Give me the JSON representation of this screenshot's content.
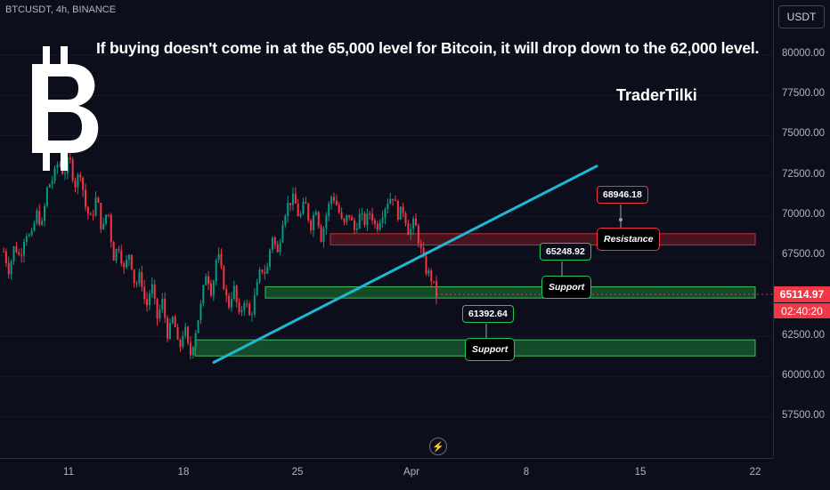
{
  "symbol_label": "BTCUSDT, 4h, BINANCE",
  "headline": "If buying doesn't come in at the 65,000 level for Bitcoin, it will drop down to the 62,000 level.",
  "author": "TraderTilki",
  "logo": "bitcoin-logo",
  "currency_button": "USDT",
  "current_price": "65114.97",
  "countdown": "02:40:20",
  "colors": {
    "up": "#089981",
    "down": "#f23645",
    "trendline": "#1fb8d4",
    "support_zone": "#1e8f3a",
    "resistance_zone": "#8a1f28"
  },
  "chart_data": {
    "type": "candlestick",
    "x_ticks": [
      "11",
      "18",
      "25",
      "Apr",
      "8",
      "15",
      "22"
    ],
    "y_ticks": [
      "80000.00",
      "77500.00",
      "75000.00",
      "72500.00",
      "70000.00",
      "67500.00",
      "62500.00",
      "60000.00",
      "57500.00"
    ],
    "ylim": [
      55000,
      83000
    ],
    "annotations": {
      "resistance": {
        "label": "Resistance",
        "price": "68946.18",
        "zone": [
          68200,
          68900
        ]
      },
      "support_upper": {
        "label": "Support",
        "price": "65248.92",
        "zone": [
          64900,
          65600
        ]
      },
      "support_lower": {
        "label": "Support",
        "price": "61392.64",
        "zone": [
          61300,
          62300
        ]
      }
    },
    "trendline": {
      "start": [
        "Mar 20",
        60900
      ],
      "end": [
        "Apr 10",
        73100
      ]
    },
    "price_path": [
      67800,
      66600,
      68200,
      67400,
      69100,
      68500,
      70200,
      69400,
      71800,
      72300,
      73400,
      72600,
      73600,
      71900,
      72800,
      70500,
      69700,
      71300,
      68900,
      70600,
      67400,
      68200,
      66600,
      67800,
      65600,
      66400,
      64200,
      65800,
      63600,
      64700,
      62500,
      63800,
      61500,
      63200,
      61200,
      62800,
      64400,
      66600,
      65200,
      67800,
      66100,
      64300,
      65600,
      63700,
      64900,
      63600,
      65200,
      66800,
      66400,
      68900,
      67600,
      69900,
      70800,
      71100,
      69800,
      70900,
      69300,
      70600,
      68600,
      70200,
      71400,
      70500,
      69300,
      70200,
      69100,
      70000,
      69600,
      70300,
      69200,
      70100,
      70900,
      71300,
      70100,
      70400,
      68900,
      69700,
      68100,
      66700,
      66200,
      65100
    ]
  }
}
